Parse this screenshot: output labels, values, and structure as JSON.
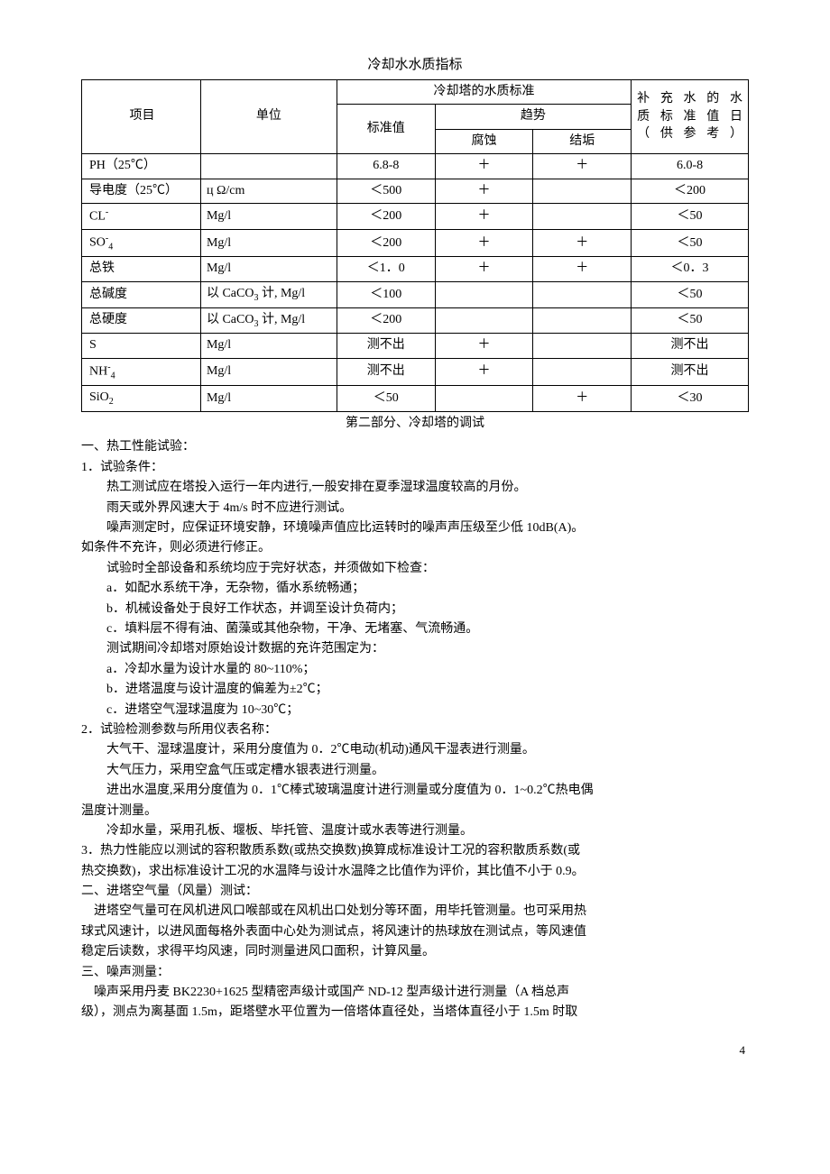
{
  "title": "冷却水水质指标",
  "table": {
    "headers": {
      "item": "项目",
      "unit": "单位",
      "tower_std_group": "冷却塔的水质标准",
      "std_val": "标准值",
      "trend": "趋势",
      "corrosion": "腐蚀",
      "scaling": "结垢",
      "ref_line1": "补充水的水",
      "ref_line2": "质标准值日",
      "ref_line3": "（供参考）"
    },
    "rows": [
      {
        "item_html": "PH（25℃）",
        "unit_html": "",
        "std": "6.8-8",
        "corr": "＋",
        "scale": "＋",
        "ref": "6.0-8"
      },
      {
        "item_html": "导电度（25℃）",
        "unit_html": "ц Ω/cm",
        "std": "＜500",
        "corr": "＋",
        "scale": "",
        "ref": "＜200"
      },
      {
        "item_html": "CL<span class=\"sup\">-</span>",
        "unit_html": "Mg/l",
        "std": "＜200",
        "corr": "＋",
        "scale": "",
        "ref": "＜50"
      },
      {
        "item_html": "SO<span class=\"sup\">-</span><span class=\"sub\">4</span>",
        "unit_html": "Mg/l",
        "std": "＜200",
        "corr": "＋",
        "scale": "＋",
        "ref": "＜50"
      },
      {
        "item_html": "总铁",
        "unit_html": "Mg/l",
        "std": "＜1．0",
        "corr": "＋",
        "scale": "＋",
        "ref": "＜0．3"
      },
      {
        "item_html": "总碱度",
        "unit_html": "以 CaCO<span class=\"sub\">3</span> 计, Mg/l",
        "std": "＜100",
        "corr": "",
        "scale": "",
        "ref": "＜50"
      },
      {
        "item_html": "总硬度",
        "unit_html": "以 CaCO<span class=\"sub\">3</span> 计, Mg/l",
        "std": "＜200",
        "corr": "",
        "scale": "",
        "ref": "＜50"
      },
      {
        "item_html": "S",
        "unit_html": "Mg/l",
        "std": "测不出",
        "corr": "＋",
        "scale": "",
        "ref": "测不出"
      },
      {
        "item_html": "NH<span class=\"sup\">-</span><span class=\"sub\">4</span>",
        "unit_html": "Mg/l",
        "std": "测不出",
        "corr": "＋",
        "scale": "",
        "ref": "测不出"
      },
      {
        "item_html": "SiO<span class=\"sub\">2</span>",
        "unit_html": "Mg/l",
        "std": "＜50",
        "corr": "",
        "scale": "＋",
        "ref": "＜30"
      }
    ]
  },
  "section2_title": "第二部分、冷却塔的调试",
  "lines": [
    {
      "cls": "indent-0",
      "t": "一、热工性能试验："
    },
    {
      "cls": "indent-0",
      "t": "1．试验条件："
    },
    {
      "cls": "indent-1",
      "t": "热工测试应在塔投入运行一年内进行,一般安排在夏季湿球温度较高的月份。"
    },
    {
      "cls": "indent-1",
      "t": "雨天或外界风速大于 4m/s 时不应进行测试。"
    },
    {
      "cls": "indent-1",
      "t": "噪声测定时，应保证环境安静，环境噪声值应比运转时的噪声声压级至少低 10dB(A)。"
    },
    {
      "cls": "indent-0",
      "t": "如条件不充许，则必须进行修正。"
    },
    {
      "cls": "indent-1",
      "t": "试验时全部设备和系统均应于完好状态，并须做如下检查："
    },
    {
      "cls": "indent-1",
      "t": "a．如配水系统干净，无杂物，循水系统畅通；"
    },
    {
      "cls": "indent-1",
      "t": "b．机械设备处于良好工作状态，并调至设计负荷内；"
    },
    {
      "cls": "indent-1",
      "t": "c．填料层不得有油、菌藻或其他杂物，干净、无堵塞、气流畅通。"
    },
    {
      "cls": "indent-1",
      "t": "测试期间冷却塔对原始设计数据的充许范围定为："
    },
    {
      "cls": "indent-1",
      "t": "a．冷却水量为设计水量的 80~110%；"
    },
    {
      "cls": "indent-1",
      "t": "b．进塔温度与设计温度的偏差为±2℃；"
    },
    {
      "cls": "indent-1",
      "t": "c．进塔空气湿球温度为 10~30℃；"
    },
    {
      "cls": "indent-0",
      "t": "2．试验检测参数与所用仪表名称："
    },
    {
      "cls": "indent-1",
      "t": "大气干、湿球温度计，采用分度值为 0．2℃电动(机动)通风干湿表进行测量。"
    },
    {
      "cls": "indent-1",
      "t": "大气压力，采用空盒气压或定槽水银表进行测量。"
    },
    {
      "cls": "indent-1",
      "t": "进出水温度,采用分度值为 0．1℃棒式玻璃温度计进行测量或分度值为 0．1~0.2℃热电偶"
    },
    {
      "cls": "indent-0",
      "t": "温度计测量。"
    },
    {
      "cls": "indent-1",
      "t": "冷却水量，采用孔板、堰板、毕托管、温度计或水表等进行测量。"
    },
    {
      "cls": "indent-0",
      "t": "3．热力性能应以测试的容积散质系数(或热交换数)换算成标准设计工况的容积散质系数(或"
    },
    {
      "cls": "indent-0",
      "t": "热交换数)，求出标准设计工况的水温降与设计水温降之比值作为评价，其比值不小于 0.9。"
    },
    {
      "cls": "indent-0",
      "t": "二、进塔空气量（风量）测试："
    },
    {
      "cls": "indent-0",
      "t": "　进塔空气量可在风机进风口喉部或在风机出口处划分等环面，用毕托管测量。也可采用热"
    },
    {
      "cls": "indent-0",
      "t": "球式风速计，以进风面每格外表面中心处为测试点，将风速计的热球放在测试点，等风速值"
    },
    {
      "cls": "indent-0",
      "t": "稳定后读数，求得平均风速，同时测量进风口面积，计算风量。"
    },
    {
      "cls": "indent-0",
      "t": "三、噪声测量："
    },
    {
      "cls": "indent-0",
      "t": "　噪声采用丹麦 BK2230+1625 型精密声级计或国产 ND-12 型声级计进行测量（A 档总声"
    },
    {
      "cls": "indent-0",
      "t": "级），测点为离基面 1.5m，距塔壁水平位置为一倍塔体直径处，当塔体直径小于 1.5m 时取"
    }
  ],
  "page_number": "4"
}
